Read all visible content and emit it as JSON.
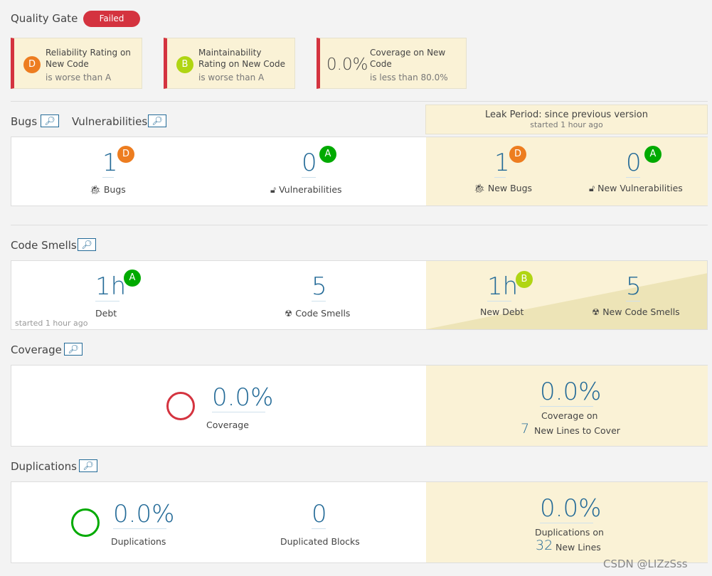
{
  "quality_gate": {
    "title": "Quality Gate",
    "status": "Failed",
    "conditions": [
      {
        "rating": "D",
        "label": "Reliability Rating on New Code",
        "detail": "is worse than A"
      },
      {
        "rating": "B",
        "label": "Maintainability Rating on New Code",
        "detail": "is worse than A"
      },
      {
        "value": "0.0%",
        "label": "Coverage on New Code",
        "detail": "is less than 80.0%"
      }
    ]
  },
  "leak": {
    "title": "Leak Period: since previous version",
    "started": "started 1 hour ago"
  },
  "bugs": {
    "title": "Bugs",
    "vuln_title": "Vulnerabilities",
    "bugs": "1",
    "bugs_rating": "D",
    "bugs_label": "Bugs",
    "vulns": "0",
    "vulns_rating": "A",
    "vulns_label": "Vulnerabilities",
    "new_bugs": "1",
    "new_bugs_rating": "D",
    "new_bugs_label": "New Bugs",
    "new_vulns": "0",
    "new_vulns_rating": "A",
    "new_vulns_label": "New Vulnerabilities"
  },
  "smells": {
    "title": "Code Smells",
    "debt": "1h",
    "debt_rating": "A",
    "debt_label": "Debt",
    "started": "started 1 hour ago",
    "smells": "5",
    "smells_label": "Code Smells",
    "new_debt": "1h",
    "new_debt_rating": "B",
    "new_debt_label": "New Debt",
    "new_smells": "5",
    "new_smells_label": "New Code Smells"
  },
  "coverage": {
    "title": "Coverage",
    "value": "0.0%",
    "label": "Coverage",
    "new_value": "0.0%",
    "new_label": "Coverage on",
    "new_lines": "7",
    "new_lines_label": "New Lines to Cover"
  },
  "duplications": {
    "title": "Duplications",
    "value": "0.0%",
    "label": "Duplications",
    "blocks": "0",
    "blocks_label": "Duplicated Blocks",
    "new_value": "0.0%",
    "new_label": "Duplications on",
    "new_lines": "32",
    "new_lines_label": "New Lines"
  },
  "watermark": "CSDN @LIZzSss"
}
